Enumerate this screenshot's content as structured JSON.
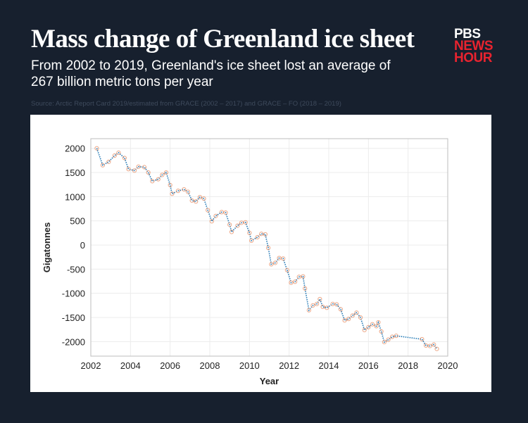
{
  "header": {
    "title": "Mass change of Greenland ice sheet",
    "subtitle": "From 2002 to 2019, Greenland's ice sheet lost an average of 267 billion metric tons per year",
    "source": "Source: Arctic Report Card 2019/estimated from GRACE (2002 – 2017) and GRACE – FO (2018 – 2019)"
  },
  "logo": {
    "line1": "PBS",
    "line2": "NEWS",
    "line3": "HOUR"
  },
  "colors": {
    "background": "#17202e",
    "line": "#1f77b4",
    "marker": "#e8926a",
    "logo_red": "#e8232f"
  },
  "chart_data": {
    "type": "line",
    "xlabel": "Year",
    "ylabel": "Gigatonnes",
    "xlim": [
      2002,
      2020
    ],
    "ylim": [
      -2300,
      2200
    ],
    "xticks": [
      "2002",
      "2004",
      "2006",
      "2008",
      "2010",
      "2012",
      "2014",
      "2016",
      "2018",
      "2020"
    ],
    "yticks": [
      "2000",
      "1500",
      "1000",
      "500",
      "0",
      "-500",
      "-1000",
      "-1500",
      "-2000"
    ],
    "grid": true,
    "series": [
      {
        "x": [
          2002.3,
          2002.6,
          2002.9,
          2003.2,
          2003.4,
          2003.7,
          2003.9,
          2004.2,
          2004.4,
          2004.7,
          2004.9,
          2005.1,
          2005.4,
          2005.6,
          2005.8,
          2006.0,
          2006.1,
          2006.4,
          2006.7,
          2006.9,
          2007.1,
          2007.3,
          2007.5,
          2007.7,
          2007.9,
          2008.1,
          2008.3,
          2008.6,
          2008.8,
          2009.0,
          2009.1,
          2009.4,
          2009.6,
          2009.8,
          2010.0,
          2010.1,
          2010.4,
          2010.6,
          2010.8,
          2010.95,
          2011.1,
          2011.3,
          2011.5,
          2011.7,
          2011.9,
          2012.1,
          2012.3,
          2012.5,
          2012.7,
          2012.8,
          2013.0,
          2013.2,
          2013.4,
          2013.55,
          2013.7,
          2013.9,
          2014.2,
          2014.4,
          2014.6,
          2014.8,
          2015.0,
          2015.2,
          2015.4,
          2015.6,
          2015.8,
          2016.0,
          2016.2,
          2016.4,
          2016.5,
          2016.65,
          2016.8,
          2017.0,
          2017.2,
          2017.4,
          2018.7,
          2018.9,
          2019.1,
          2019.3,
          2019.45
        ],
        "y": [
          2000,
          1650,
          1720,
          1850,
          1910,
          1800,
          1570,
          1540,
          1620,
          1610,
          1500,
          1320,
          1360,
          1450,
          1500,
          1240,
          1060,
          1120,
          1150,
          1100,
          920,
          900,
          990,
          960,
          720,
          490,
          600,
          680,
          670,
          420,
          270,
          400,
          460,
          470,
          250,
          90,
          160,
          230,
          220,
          -60,
          -400,
          -370,
          -270,
          -280,
          -520,
          -780,
          -760,
          -660,
          -650,
          -900,
          -1350,
          -1250,
          -1220,
          -1120,
          -1280,
          -1300,
          -1220,
          -1230,
          -1330,
          -1560,
          -1530,
          -1460,
          -1400,
          -1500,
          -1760,
          -1700,
          -1640,
          -1680,
          -1600,
          -1790,
          -2010,
          -1960,
          -1900,
          -1880,
          -1950,
          -2080,
          -2090,
          -2060,
          -2150
        ]
      }
    ]
  }
}
